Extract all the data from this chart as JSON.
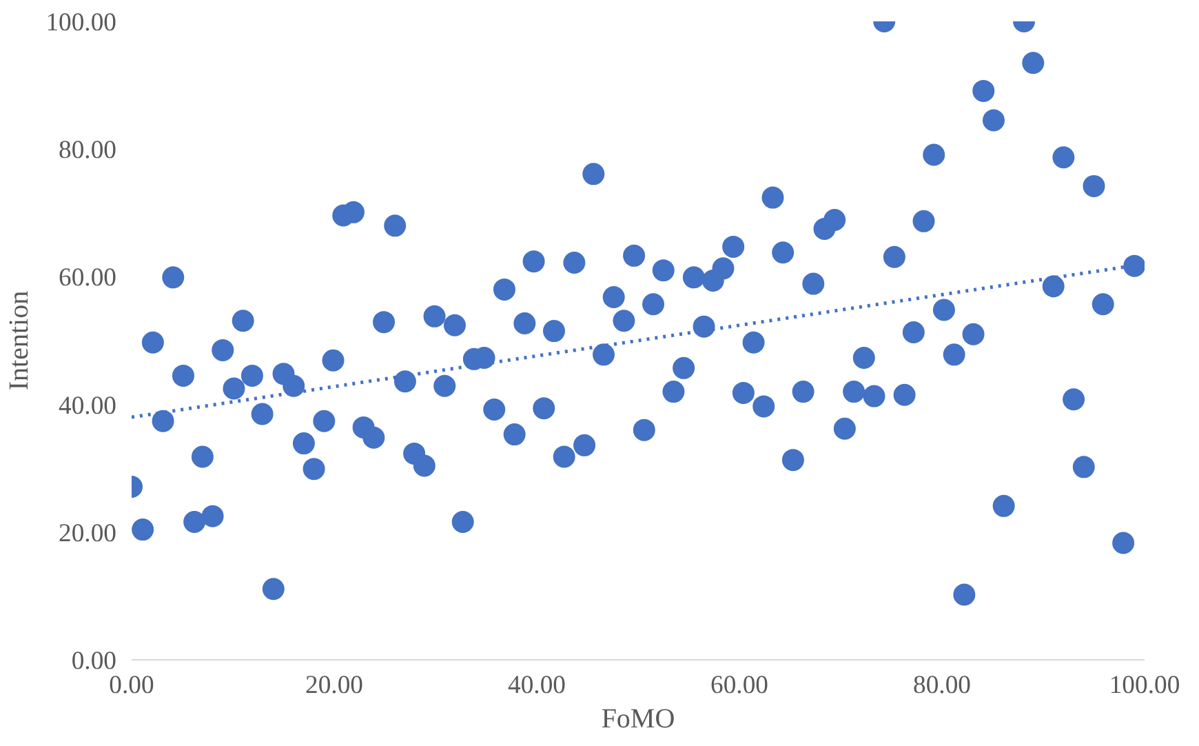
{
  "chart_data": {
    "type": "scatter",
    "xlabel": "FoMO",
    "ylabel": "Intention",
    "xlim": [
      0,
      100
    ],
    "ylim": [
      0,
      100
    ],
    "xticks": [
      {
        "value": 0,
        "label": "0.00"
      },
      {
        "value": 20,
        "label": "20.00"
      },
      {
        "value": 40,
        "label": "40.00"
      },
      {
        "value": 60,
        "label": "60.00"
      },
      {
        "value": 80,
        "label": "80.00"
      },
      {
        "value": 100,
        "label": "100.00"
      }
    ],
    "yticks": [
      {
        "value": 0,
        "label": "0.00"
      },
      {
        "value": 20,
        "label": "20.00"
      },
      {
        "value": 40,
        "label": "40.00"
      },
      {
        "value": 60,
        "label": "60.00"
      },
      {
        "value": 80,
        "label": "80.00"
      },
      {
        "value": 100,
        "label": "100.00"
      }
    ],
    "grid": false,
    "marker": "circle",
    "series": [
      {
        "color": "#4472c4",
        "x": [
          0,
          1.1,
          2.1,
          3.1,
          4.1,
          5.1,
          6.2,
          7.0,
          8.0,
          9.0,
          10.1,
          11.0,
          11.9,
          12.9,
          14.0,
          15.0,
          16.0,
          17.0,
          18.0,
          19.0,
          19.9,
          20.9,
          21.9,
          22.9,
          23.9,
          24.9,
          26.0,
          27.0,
          27.9,
          28.9,
          29.9,
          30.9,
          31.9,
          32.7,
          33.8,
          34.8,
          35.8,
          36.8,
          37.8,
          38.8,
          39.7,
          40.7,
          41.7,
          42.7,
          43.7,
          44.7,
          45.6,
          46.6,
          47.6,
          48.6,
          49.6,
          50.6,
          51.5,
          52.5,
          53.5,
          54.5,
          55.5,
          56.5,
          57.4,
          58.4,
          59.4,
          60.4,
          61.4,
          62.4,
          63.3,
          64.3,
          65.3,
          66.3,
          67.3,
          68.4,
          69.4,
          70.4,
          71.3,
          72.3,
          73.3,
          74.3,
          75.3,
          76.3,
          77.2,
          78.2,
          79.2,
          80.2,
          81.2,
          82.2,
          83.1,
          84.1,
          85.1,
          86.1,
          88.1,
          89.0,
          91.0,
          92.0,
          93.0,
          94.0,
          95.0,
          95.9,
          97.9,
          99.0
        ],
        "values": [
          27.1,
          20.4,
          49.7,
          37.4,
          59.9,
          44.5,
          21.6,
          31.8,
          22.5,
          48.5,
          42.5,
          53.1,
          44.5,
          38.5,
          11.1,
          44.8,
          42.9,
          33.9,
          29.9,
          37.4,
          46.9,
          69.6,
          70.1,
          36.4,
          34.8,
          52.9,
          68.0,
          43.6,
          32.3,
          30.4,
          53.8,
          42.9,
          52.4,
          21.6,
          47.1,
          47.3,
          39.2,
          58.0,
          35.3,
          52.7,
          62.4,
          39.4,
          51.5,
          31.8,
          62.2,
          33.6,
          76.1,
          47.8,
          56.8,
          53.1,
          63.3,
          36.0,
          55.7,
          61.0,
          42.0,
          45.7,
          59.9,
          52.2,
          59.4,
          61.3,
          64.7,
          41.8,
          49.7,
          39.7,
          72.4,
          63.8,
          31.3,
          42.0,
          58.9,
          67.5,
          68.9,
          36.2,
          42.0,
          47.3,
          41.3,
          100,
          63.1,
          41.5,
          51.3,
          68.7,
          79.1,
          54.8,
          47.8,
          10.2,
          51.0,
          89.1,
          84.5,
          24.1,
          100,
          93.5,
          58.5,
          78.7,
          40.8,
          30.2,
          74.2,
          55.7,
          18.3,
          61.7
        ]
      },
      {
        "type": "line",
        "color": "#4472c4",
        "line_style": "dotted",
        "marker": "none",
        "x": [
          0,
          100
        ],
        "values": [
          38,
          62
        ]
      }
    ]
  }
}
